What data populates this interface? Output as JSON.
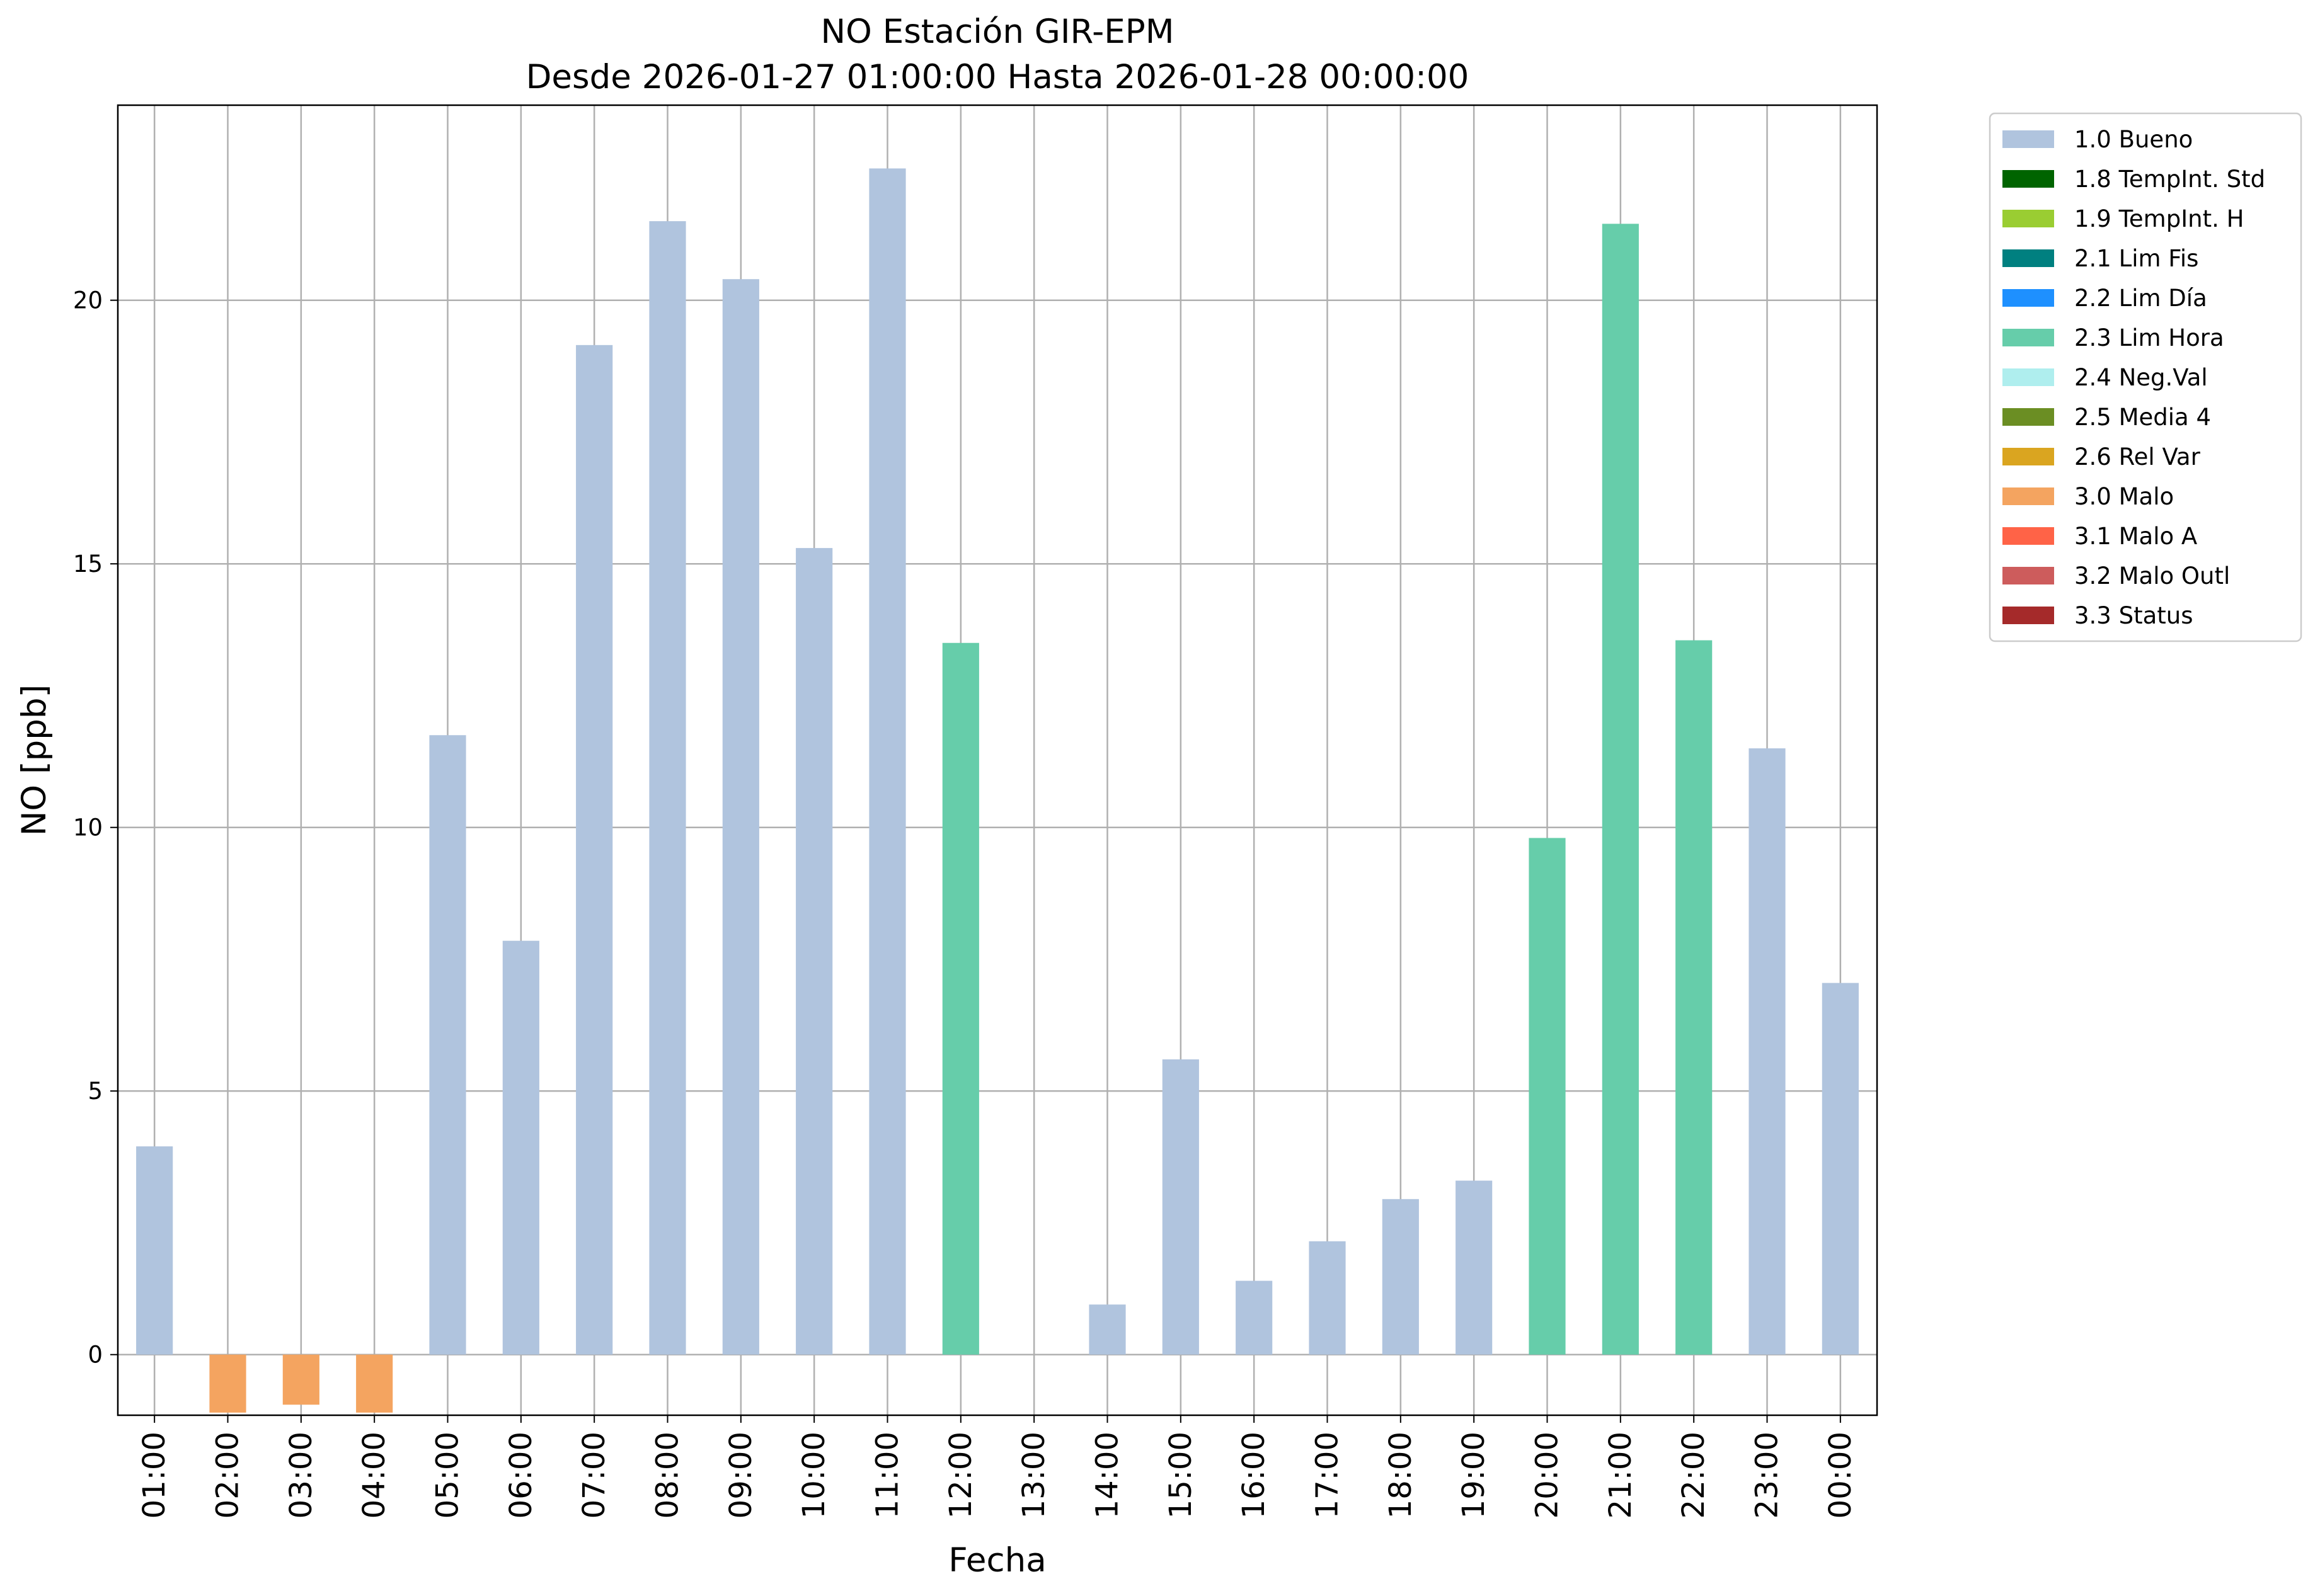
{
  "chart_data": {
    "type": "bar",
    "title": "NO Estación GIR-EPM",
    "subtitle": "Desde 2026-01-27 01:00:00 Hasta 2026-01-28 00:00:00",
    "xlabel": "Fecha",
    "ylabel": "NO [ppb]",
    "ylim": [
      -1.15,
      23.7
    ],
    "yticks": [
      0,
      5,
      10,
      15,
      20
    ],
    "grid": true,
    "legend_position": "outside-top-right",
    "categories": [
      "01:00",
      "02:00",
      "03:00",
      "04:00",
      "05:00",
      "06:00",
      "07:00",
      "08:00",
      "09:00",
      "10:00",
      "11:00",
      "12:00",
      "13:00",
      "14:00",
      "15:00",
      "16:00",
      "17:00",
      "18:00",
      "19:00",
      "20:00",
      "21:00",
      "22:00",
      "23:00",
      "00:00"
    ],
    "values": [
      3.95,
      -1.1,
      -0.95,
      -1.1,
      11.75,
      7.85,
      19.15,
      21.5,
      20.4,
      15.3,
      22.5,
      13.5,
      null,
      0.95,
      5.6,
      1.4,
      2.15,
      2.95,
      3.3,
      9.8,
      21.45,
      13.55,
      11.5,
      7.05
    ],
    "flags": [
      "1.0 Bueno",
      "3.0 Malo",
      "3.0 Malo",
      "3.0 Malo",
      "1.0 Bueno",
      "1.0 Bueno",
      "1.0 Bueno",
      "1.0 Bueno",
      "1.0 Bueno",
      "1.0 Bueno",
      "1.0 Bueno",
      "2.3 Lim Hora",
      null,
      "1.0 Bueno",
      "1.0 Bueno",
      "1.0 Bueno",
      "1.0 Bueno",
      "1.0 Bueno",
      "1.0 Bueno",
      "2.3 Lim Hora",
      "2.3 Lim Hora",
      "2.3 Lim Hora",
      "1.0 Bueno",
      "1.0 Bueno"
    ],
    "legend": [
      {
        "label": "1.0 Bueno",
        "color": "#b0c4de"
      },
      {
        "label": "1.8 TempInt. Std",
        "color": "#006400"
      },
      {
        "label": "1.9 TempInt. H",
        "color": "#9acd32"
      },
      {
        "label": "2.1 Lim Fis",
        "color": "#008080"
      },
      {
        "label": "2.2 Lim Día",
        "color": "#1e90ff"
      },
      {
        "label": "2.3 Lim Hora",
        "color": "#66cdaa"
      },
      {
        "label": "2.4 Neg.Val",
        "color": "#afeeee"
      },
      {
        "label": "2.5 Media 4",
        "color": "#6b8e23"
      },
      {
        "label": "2.6 Rel Var",
        "color": "#daa520"
      },
      {
        "label": "3.0 Malo",
        "color": "#f4a460"
      },
      {
        "label": "3.1 Malo A",
        "color": "#ff6347"
      },
      {
        "label": "3.2 Malo Outl",
        "color": "#cd5c5c"
      },
      {
        "label": "3.3 Status",
        "color": "#a52a2a"
      }
    ]
  }
}
